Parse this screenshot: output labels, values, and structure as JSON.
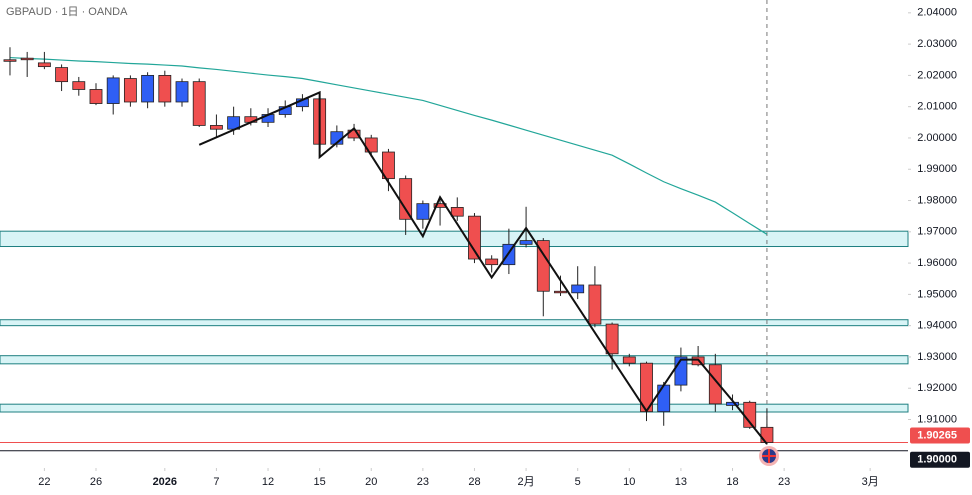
{
  "chart_data": {
    "type": "candlestick",
    "title": "GBPAUD · 1日 · OANDA",
    "x": [
      0,
      1,
      2,
      3,
      4,
      5,
      6,
      7,
      8,
      9,
      10,
      11,
      12,
      13,
      14,
      15,
      16,
      17,
      18,
      19,
      20,
      21,
      22,
      23,
      24,
      25,
      26,
      27,
      28,
      29,
      30,
      31,
      32,
      33,
      34,
      35,
      36,
      37,
      38,
      39,
      40,
      41,
      42,
      43,
      44
    ],
    "open": [
      2.025,
      2.0255,
      2.024,
      2.0225,
      2.018,
      2.0155,
      2.011,
      2.019,
      2.0115,
      2.02,
      2.0115,
      2.018,
      2.004,
      2.0028,
      2.0068,
      2.005,
      2.0075,
      2.01,
      2.0125,
      1.998,
      2.0025,
      2.0,
      1.9955,
      1.987,
      1.974,
      1.979,
      1.9778,
      1.975,
      1.9613,
      1.9595,
      1.966,
      1.9672,
      1.951,
      1.9505,
      1.953,
      1.9405,
      1.93,
      1.928,
      1.9125,
      1.921,
      1.93,
      1.9275,
      1.9145,
      1.9155,
      1.9075
    ],
    "high": [
      2.029,
      2.0275,
      2.0275,
      2.0235,
      2.0195,
      2.0175,
      2.02,
      2.02,
      2.021,
      2.0215,
      2.019,
      2.019,
      2.0075,
      2.01,
      2.0095,
      2.0095,
      2.012,
      2.014,
      2.0135,
      2.004,
      2.0045,
      2.001,
      1.9965,
      1.988,
      1.98,
      1.9805,
      1.981,
      1.976,
      1.9625,
      1.971,
      1.978,
      1.968,
      1.956,
      1.959,
      1.959,
      1.941,
      1.931,
      1.9285,
      1.922,
      1.933,
      1.9335,
      1.931,
      1.918,
      1.916,
      1.9135
    ],
    "low": [
      2.02,
      2.0195,
      2.022,
      2.015,
      2.0135,
      2.0105,
      2.0075,
      2.01,
      2.0095,
      2.01,
      2.01,
      2.0035,
      2.0,
      2.001,
      2.004,
      2.0035,
      2.0065,
      2.0085,
      1.996,
      1.997,
      1.999,
      1.994,
      1.983,
      1.969,
      1.971,
      1.972,
      1.9735,
      1.96,
      1.957,
      1.9565,
      1.965,
      1.943,
      1.9495,
      1.9485,
      1.9395,
      1.926,
      1.927,
      1.9095,
      1.908,
      1.919,
      1.927,
      1.9125,
      1.913,
      1.907,
      1.902
    ],
    "close": [
      2.0245,
      2.025,
      2.0228,
      2.018,
      2.0155,
      2.011,
      2.0192,
      2.0115,
      2.02,
      2.0115,
      2.018,
      2.004,
      2.0028,
      2.0068,
      2.005,
      2.0075,
      2.01,
      2.0125,
      1.998,
      2.002,
      2.0,
      1.9955,
      1.987,
      1.974,
      1.979,
      1.9778,
      1.975,
      1.9613,
      1.9595,
      1.966,
      1.9672,
      1.951,
      1.9505,
      1.953,
      1.9405,
      1.931,
      1.928,
      1.9125,
      1.921,
      1.93,
      1.9275,
      1.915,
      1.9155,
      1.9075,
      1.90265
    ],
    "up_color": "#2f5ff5",
    "down_color": "#ef4f4f",
    "moving_average": {
      "color": "#22a699",
      "values": [
        2.0257,
        2.0254,
        2.0252,
        2.0249,
        2.0246,
        2.0244,
        2.0241,
        2.0238,
        2.0236,
        2.0233,
        2.023,
        2.0224,
        2.0219,
        2.0213,
        2.0207,
        2.0201,
        2.0196,
        2.019,
        2.018,
        2.017,
        2.016,
        2.015,
        2.014,
        2.013,
        2.012,
        2.0104,
        2.0088,
        2.0072,
        2.0057,
        2.0041,
        2.0025,
        2.0009,
        1.9993,
        1.9977,
        1.9961,
        1.9945,
        1.9917,
        1.9888,
        1.986,
        1.9838,
        1.9817,
        1.9795,
        1.9761,
        1.9726,
        1.9692
      ]
    },
    "trendline": {
      "x": [
        11,
        18,
        18,
        20,
        24,
        25,
        28,
        30,
        37,
        39,
        40,
        42,
        44
      ],
      "y": [
        1.9978,
        2.01456,
        1.99386,
        2.00306,
        1.96856,
        1.98105,
        1.95542,
        1.97119,
        1.9127,
        1.92913,
        1.92913,
        1.91599,
        1.90218
      ]
    },
    "zones": [
      {
        "low": 1.9653,
        "high": 1.9702
      },
      {
        "low": 1.94,
        "high": 1.9419
      },
      {
        "low": 1.9278,
        "high": 1.9304
      },
      {
        "low": 1.9124,
        "high": 1.9149
      }
    ],
    "price_lines": [
      {
        "value": 1.90265,
        "label": "1.90265",
        "color": "#ef4f4f"
      },
      {
        "value": 1.9,
        "label": "1.90000",
        "color": "#131722"
      }
    ],
    "xlim": [
      -0.58,
      52.2
    ],
    "xticks": [
      {
        "value": 2,
        "label": "22"
      },
      {
        "value": 5,
        "label": "26"
      },
      {
        "value": 9,
        "label": "2026"
      },
      {
        "value": 12,
        "label": "7"
      },
      {
        "value": 15,
        "label": "12"
      },
      {
        "value": 18,
        "label": "15"
      },
      {
        "value": 21,
        "label": "20"
      },
      {
        "value": 24,
        "label": "23"
      },
      {
        "value": 27,
        "label": "28"
      },
      {
        "value": 30,
        "label": "2月"
      },
      {
        "value": 33,
        "label": "5"
      },
      {
        "value": 36,
        "label": "10"
      },
      {
        "value": 39,
        "label": "13"
      },
      {
        "value": 42,
        "label": "18"
      },
      {
        "value": 45,
        "label": "23"
      },
      {
        "value": 50,
        "label": "3月"
      }
    ],
    "ylim": [
      1.8945,
      2.0441
    ],
    "yticks": [
      {
        "value": 2.04,
        "label": "2.04000"
      },
      {
        "value": 2.03,
        "label": "2.03000"
      },
      {
        "value": 2.02,
        "label": "2.02000"
      },
      {
        "value": 2.01,
        "label": "2.01000"
      },
      {
        "value": 2.0,
        "label": "2.00000"
      },
      {
        "value": 1.99,
        "label": "1.99000"
      },
      {
        "value": 1.98,
        "label": "1.98000"
      },
      {
        "value": 1.97,
        "label": "1.97000"
      },
      {
        "value": 1.96,
        "label": "1.96000"
      },
      {
        "value": 1.95,
        "label": "1.95000"
      },
      {
        "value": 1.94,
        "label": "1.94000"
      },
      {
        "value": 1.93,
        "label": "1.93000"
      },
      {
        "value": 1.92,
        "label": "1.92000"
      },
      {
        "value": 1.91,
        "label": "1.91000"
      }
    ]
  }
}
